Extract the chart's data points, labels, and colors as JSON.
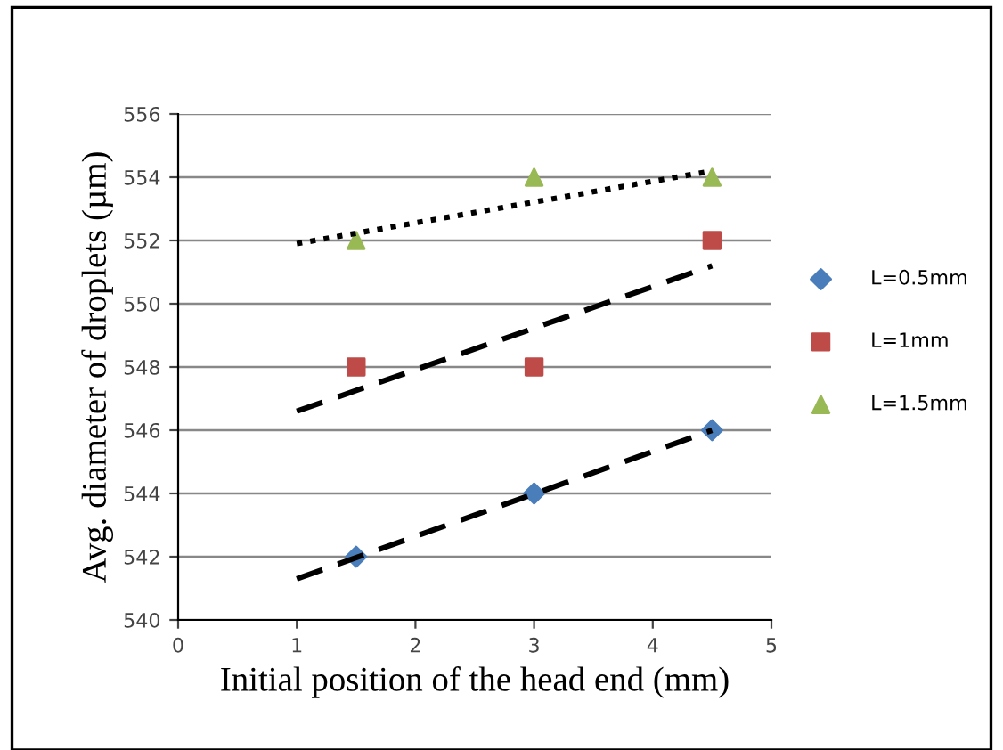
{
  "chart_data": {
    "type": "scatter",
    "xlabel": "Initial position of the head end (mm)",
    "ylabel": "Avg. diameter of droplets (µm)",
    "xlim": [
      0,
      5
    ],
    "xticks": [
      0,
      1,
      2,
      3,
      4,
      5
    ],
    "ylim": [
      540,
      556
    ],
    "yticks": [
      540,
      542,
      544,
      546,
      548,
      550,
      552,
      554,
      556
    ],
    "grid": "y",
    "legend": "right",
    "series": [
      {
        "name": "L=0.5mm",
        "color": "#4a7ebb",
        "marker": "diamond",
        "x": [
          1.5,
          3,
          4.5
        ],
        "values": [
          542,
          544,
          546
        ]
      },
      {
        "name": "L=1mm",
        "color": "#be4b48",
        "marker": "square",
        "x": [
          1.5,
          3,
          4.5
        ],
        "values": [
          548,
          548,
          552
        ]
      },
      {
        "name": "L=1.5mm",
        "color": "#98b954",
        "marker": "triangle",
        "x": [
          1.5,
          3,
          4.5
        ],
        "values": [
          552,
          554,
          554
        ]
      },
      {
        "type": "line",
        "color": "#000000",
        "line_style": "dashed",
        "marker": "none",
        "x": [
          1,
          4.5
        ],
        "values": [
          541.3,
          546.0
        ]
      },
      {
        "type": "line",
        "color": "#000000",
        "line_style": "dashed",
        "marker": "none",
        "x": [
          1,
          4.5
        ],
        "values": [
          546.6,
          551.2
        ]
      },
      {
        "type": "line",
        "color": "#000000",
        "line_style": "dotted",
        "marker": "none",
        "x": [
          1,
          4.5
        ],
        "values": [
          551.9,
          554.2
        ]
      }
    ]
  }
}
